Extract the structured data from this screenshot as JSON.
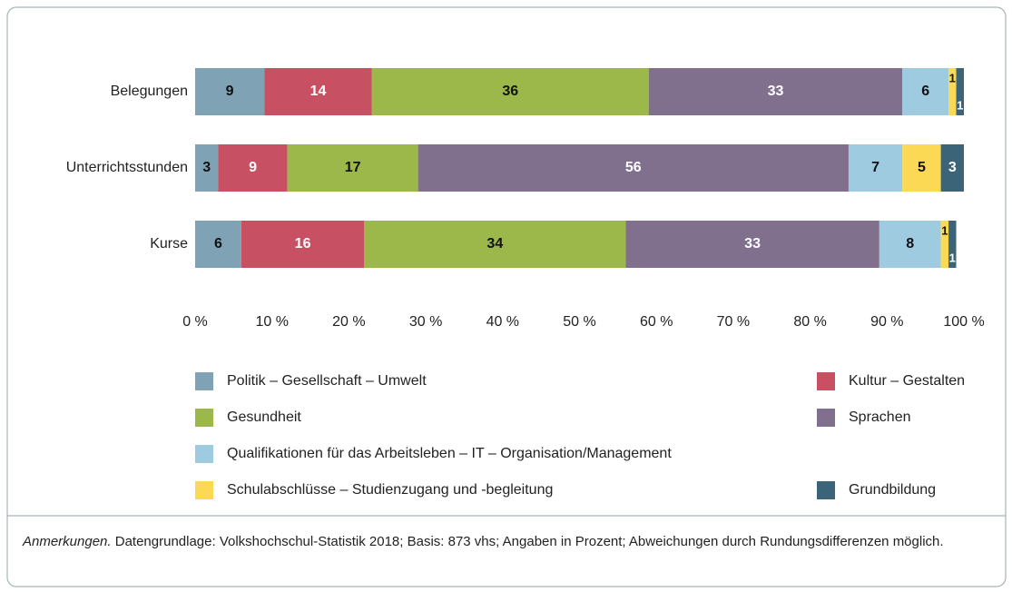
{
  "chart_data": {
    "type": "stacked_barh",
    "categories": [
      "Belegungen",
      "Unterrichtsstunden",
      "Kurse"
    ],
    "series": [
      {
        "name": "Politik – Gesellschaft – Umwelt",
        "color": "#7fa3b5",
        "values": [
          9,
          3,
          6
        ]
      },
      {
        "name": "Kultur – Gestalten",
        "color": "#c85063",
        "values": [
          14,
          9,
          16
        ]
      },
      {
        "name": "Gesundheit",
        "color": "#9cb84a",
        "values": [
          36,
          17,
          34
        ]
      },
      {
        "name": "Sprachen",
        "color": "#80708e",
        "values": [
          33,
          56,
          33
        ]
      },
      {
        "name": "Qualifikationen für das Arbeitsleben – IT – Organisation/Management",
        "color": "#9ecbe0",
        "values": [
          6,
          7,
          8
        ]
      },
      {
        "name": "Schulabschlüsse – Studienzugang und -begleitung",
        "color": "#fcd955",
        "values": [
          1,
          5,
          1
        ]
      },
      {
        "name": "Grundbildung",
        "color": "#3b6478",
        "values": [
          1,
          3,
          1
        ]
      }
    ],
    "xlim": [
      0,
      100
    ],
    "xticks": [
      {
        "value": 0,
        "label": "0 %"
      },
      {
        "value": 10,
        "label": "10 %"
      },
      {
        "value": 20,
        "label": "20 %"
      },
      {
        "value": 30,
        "label": "30 %"
      },
      {
        "value": 40,
        "label": "40 %"
      },
      {
        "value": 50,
        "label": "50 %"
      },
      {
        "value": 60,
        "label": "60 %"
      },
      {
        "value": 70,
        "label": "70 %"
      },
      {
        "value": 80,
        "label": "80 %"
      },
      {
        "value": 90,
        "label": "90 %"
      },
      {
        "value": 100,
        "label": "100 %"
      }
    ],
    "note_label": "Anmerkungen.",
    "note": "Datengrundlage: Volkshochschul-Statistik 2018; Basis: 873 vhs; Angaben in Prozent; Abweichungen durch Rundungsdifferenzen möglich."
  }
}
